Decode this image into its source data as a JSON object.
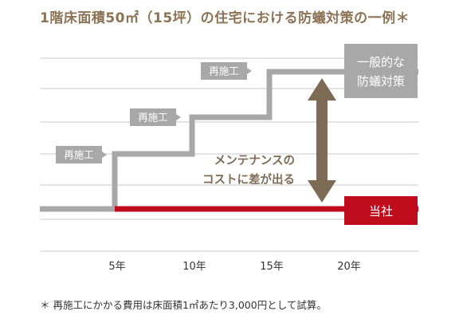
{
  "title": "1階床面積50㎡（15坪）の住宅における防蟻対策の一例＊",
  "note": "＊ 再施工にかかる費用は床面積1㎡あたり3,000円として試算。",
  "colors": {
    "general": "#a8a8a8",
    "company": "#c00d1e",
    "arrow": "#7d6b55",
    "grid": "#c8c8c8",
    "accent_text": "#8c7355",
    "box_text": "#ffffff"
  },
  "chart_data": {
    "type": "line",
    "x_tick_labels": [
      "5年",
      "10年",
      "15年",
      "20年"
    ],
    "x_ticks": [
      5,
      10,
      15,
      20
    ],
    "xlim": [
      0,
      20
    ],
    "grid": true,
    "series": [
      {
        "name": "一般的な防蟻対策",
        "steps": [
          {
            "x": 0,
            "level": 0
          },
          {
            "x": 5,
            "level": 1
          },
          {
            "x": 10,
            "level": 2
          },
          {
            "x": 15,
            "level": 3
          }
        ]
      },
      {
        "name": "当社",
        "steps": [
          {
            "x": 5,
            "level": 0
          }
        ]
      }
    ],
    "annotations": [
      "再施工",
      "再施工",
      "再施工"
    ],
    "series_labels": {
      "general": "一般的な防蟻対策",
      "general_lines": [
        "一般的な",
        "防蟻対策"
      ],
      "company": "当社"
    },
    "difference_text": [
      "メンテナンスの",
      "コストに差が出る"
    ]
  }
}
